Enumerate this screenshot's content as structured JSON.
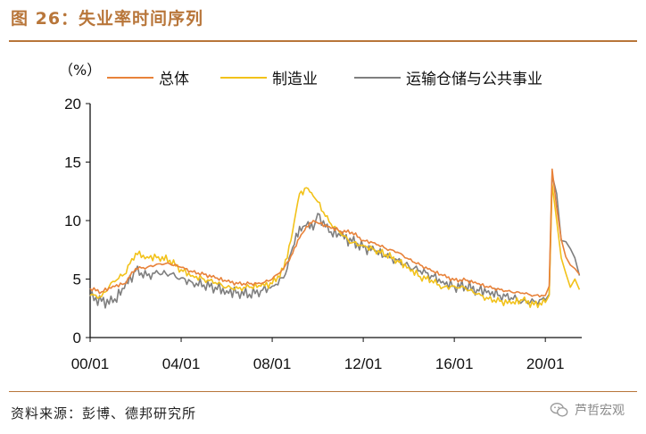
{
  "title": "图 26：失业率时间序列",
  "source": "资料来源：彭博、德邦研究所",
  "watermark": "芦哲宏观",
  "chart_data": {
    "type": "line",
    "y_unit_label": "（%）",
    "ylim": [
      0,
      20
    ],
    "y_ticks": [
      "0",
      "5",
      "10",
      "15",
      "20"
    ],
    "x_ticks": [
      "00/01",
      "04/01",
      "08/01",
      "12/01",
      "16/01",
      "20/01"
    ],
    "x_tick_years": [
      2000,
      2004,
      2008,
      2012,
      2016,
      2020
    ],
    "xlim": [
      2000,
      2021.6
    ],
    "grid": false,
    "legend_position": "top",
    "series": [
      {
        "name": "总体",
        "color": "#e8823a",
        "x": [
          2000.0,
          2000.5,
          2001.0,
          2001.5,
          2002.0,
          2002.5,
          2003.0,
          2003.5,
          2004.0,
          2004.5,
          2005.0,
          2005.5,
          2006.0,
          2006.5,
          2007.0,
          2007.5,
          2008.0,
          2008.5,
          2008.9,
          2009.2,
          2009.5,
          2009.8,
          2010.0,
          2010.5,
          2011.0,
          2011.5,
          2012.0,
          2012.5,
          2013.0,
          2013.5,
          2014.0,
          2014.5,
          2015.0,
          2015.5,
          2016.0,
          2016.5,
          2017.0,
          2017.5,
          2018.0,
          2018.5,
          2019.0,
          2019.5,
          2020.0,
          2020.17,
          2020.3,
          2020.5,
          2020.7,
          2020.9,
          2021.1,
          2021.3,
          2021.5
        ],
        "y": [
          4.2,
          3.9,
          4.4,
          4.6,
          5.9,
          6.0,
          6.3,
          6.3,
          6.0,
          5.6,
          5.4,
          5.1,
          4.8,
          4.6,
          4.6,
          4.6,
          5.0,
          5.9,
          7.2,
          8.5,
          9.5,
          10.0,
          9.8,
          9.5,
          9.1,
          9.0,
          8.3,
          8.1,
          7.6,
          7.3,
          6.7,
          6.2,
          5.7,
          5.3,
          4.9,
          4.9,
          4.6,
          4.3,
          4.1,
          3.9,
          3.8,
          3.6,
          3.6,
          4.4,
          14.4,
          11.1,
          8.4,
          6.9,
          6.2,
          5.9,
          5.4
        ]
      },
      {
        "name": "制造业",
        "color": "#f2c21a",
        "x": [
          2000.0,
          2000.5,
          2001.0,
          2001.5,
          2002.0,
          2002.5,
          2003.0,
          2003.5,
          2004.0,
          2004.5,
          2005.0,
          2005.5,
          2006.0,
          2006.5,
          2007.0,
          2007.5,
          2008.0,
          2008.5,
          2008.9,
          2009.2,
          2009.5,
          2009.8,
          2010.0,
          2010.5,
          2011.0,
          2011.5,
          2012.0,
          2012.5,
          2013.0,
          2013.5,
          2014.0,
          2014.5,
          2015.0,
          2015.5,
          2016.0,
          2016.5,
          2017.0,
          2017.5,
          2018.0,
          2018.5,
          2019.0,
          2019.5,
          2020.0,
          2020.17,
          2020.3,
          2020.5,
          2020.7,
          2020.9,
          2021.1,
          2021.3,
          2021.5
        ],
        "y": [
          3.6,
          3.5,
          4.8,
          5.4,
          7.2,
          6.9,
          6.9,
          6.6,
          5.8,
          5.3,
          5.0,
          4.7,
          4.3,
          4.2,
          4.3,
          4.4,
          4.6,
          5.8,
          9.1,
          12.3,
          12.8,
          12.1,
          11.6,
          9.9,
          8.9,
          8.1,
          7.9,
          7.5,
          7.1,
          6.6,
          6.0,
          5.2,
          4.9,
          4.3,
          4.4,
          4.2,
          3.7,
          3.3,
          3.1,
          2.9,
          3.2,
          2.8,
          3.0,
          3.6,
          13.1,
          10.0,
          6.8,
          5.5,
          4.3,
          5.0,
          4.1
        ]
      },
      {
        "name": "运输仓储与公共事业",
        "color": "#7f7f7f",
        "x": [
          2000.0,
          2000.5,
          2001.0,
          2001.5,
          2002.0,
          2002.5,
          2003.0,
          2003.5,
          2004.0,
          2004.5,
          2005.0,
          2005.5,
          2006.0,
          2006.5,
          2007.0,
          2007.5,
          2008.0,
          2008.5,
          2008.9,
          2009.2,
          2009.5,
          2009.8,
          2010.0,
          2010.5,
          2011.0,
          2011.5,
          2012.0,
          2012.5,
          2013.0,
          2013.5,
          2014.0,
          2014.5,
          2015.0,
          2015.5,
          2016.0,
          2016.5,
          2017.0,
          2017.5,
          2018.0,
          2018.5,
          2019.0,
          2019.5,
          2020.0,
          2020.17,
          2020.3,
          2020.5,
          2020.7,
          2020.9,
          2021.1,
          2021.3,
          2021.5
        ],
        "y": [
          3.5,
          3.1,
          3.0,
          4.2,
          5.7,
          5.3,
          5.5,
          5.4,
          5.1,
          4.7,
          4.5,
          4.3,
          4.0,
          3.9,
          3.7,
          4.0,
          4.4,
          5.1,
          7.7,
          9.5,
          9.6,
          9.2,
          10.6,
          9.0,
          8.7,
          8.2,
          7.7,
          7.4,
          6.9,
          6.6,
          6.1,
          5.7,
          5.3,
          4.8,
          4.4,
          4.4,
          4.1,
          4.0,
          3.6,
          3.4,
          3.1,
          3.1,
          3.2,
          3.7,
          13.9,
          12.3,
          8.3,
          8.2,
          7.6,
          6.8,
          5.3
        ]
      }
    ]
  }
}
